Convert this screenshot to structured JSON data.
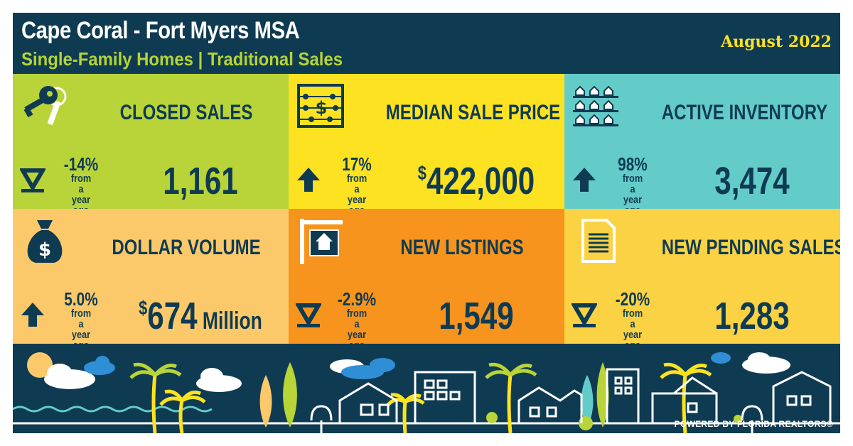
{
  "header": {
    "title": "Cape Coral - Fort Myers MSA",
    "subtitle": "Single-Family Homes | Traditional Sales",
    "date": "August 2022"
  },
  "colors": {
    "navy": "#0f3b52",
    "lime": "#b9d438",
    "yellow": "#fde221",
    "teal": "#63ccc9",
    "peach": "#fcc96a",
    "orange": "#f7941d",
    "gold": "#fbd243"
  },
  "tiles": [
    {
      "label": "CLOSED SALES",
      "icon": "keys-icon",
      "direction": "down",
      "change": "-14%",
      "note": "from a year ago",
      "value": "1,161"
    },
    {
      "label": "MEDIAN SALE PRICE",
      "icon": "abacus-icon",
      "direction": "up",
      "change": "17%",
      "note": "from a year ago",
      "value_prefix": "$",
      "value": "422,000"
    },
    {
      "label": "ACTIVE INVENTORY",
      "icon": "houses-grid-icon",
      "direction": "up",
      "change": "98%",
      "note": "from a year ago",
      "value": "3,474"
    },
    {
      "label": "DOLLAR VOLUME",
      "icon": "money-bag-icon",
      "direction": "up",
      "change": "5.0%",
      "note": "from a year ago",
      "value_prefix": "$",
      "value": "674",
      "value_unit": " Million"
    },
    {
      "label": "NEW LISTINGS",
      "icon": "house-sign-icon",
      "direction": "down",
      "change": "-2.9%",
      "note": "from a year ago",
      "value": "1,549"
    },
    {
      "label": "NEW PENDING SALES",
      "icon": "document-icon",
      "direction": "down",
      "change": "-20%",
      "note": "from a year ago",
      "value": "1,283"
    }
  ],
  "footer": {
    "powered_by": "POWERED BY FLORIDA REALTORS®"
  }
}
